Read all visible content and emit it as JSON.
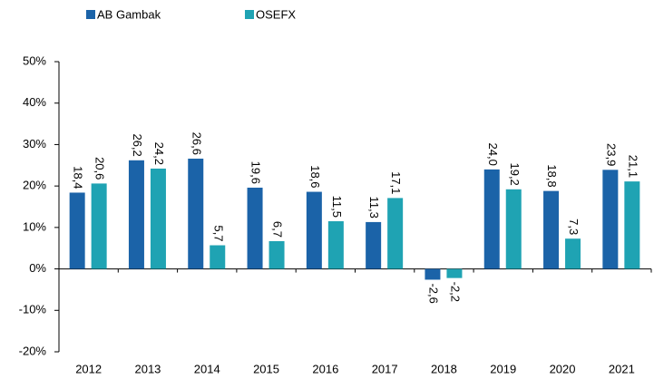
{
  "chart_data": {
    "type": "bar",
    "categories": [
      "2012",
      "2013",
      "2014",
      "2015",
      "2016",
      "2017",
      "2018",
      "2019",
      "2020",
      "2021"
    ],
    "series": [
      {
        "name": "AB Gambak",
        "color": "#1b63a8",
        "values": [
          18.4,
          26.2,
          26.6,
          19.6,
          18.6,
          11.3,
          -2.6,
          24.0,
          18.8,
          23.9
        ],
        "value_labels": [
          "18,4",
          "26,2",
          "26,6",
          "19,6",
          "18,6",
          "11,3",
          "-2,6",
          "24,0",
          "18,8",
          "23,9"
        ]
      },
      {
        "name": "OSEFX",
        "color": "#1fa3b3",
        "values": [
          20.6,
          24.2,
          5.7,
          6.7,
          11.5,
          17.1,
          -2.2,
          19.2,
          7.3,
          21.1
        ],
        "value_labels": [
          "20,6",
          "24,2",
          "5,7",
          "6,7",
          "11,5",
          "17,1",
          "-2,2",
          "19,2",
          "7,3",
          "21,1"
        ]
      }
    ],
    "ylim": [
      -20,
      50
    ],
    "yticks": [
      {
        "value": -20,
        "label": "-20%"
      },
      {
        "value": -10,
        "label": "-10%"
      },
      {
        "value": 0,
        "label": "0%"
      },
      {
        "value": 10,
        "label": "10%"
      },
      {
        "value": 20,
        "label": "20%"
      },
      {
        "value": 30,
        "label": "30%"
      },
      {
        "value": 40,
        "label": "40%"
      },
      {
        "value": 50,
        "label": "50%"
      }
    ],
    "grid": false,
    "legend": "top"
  }
}
